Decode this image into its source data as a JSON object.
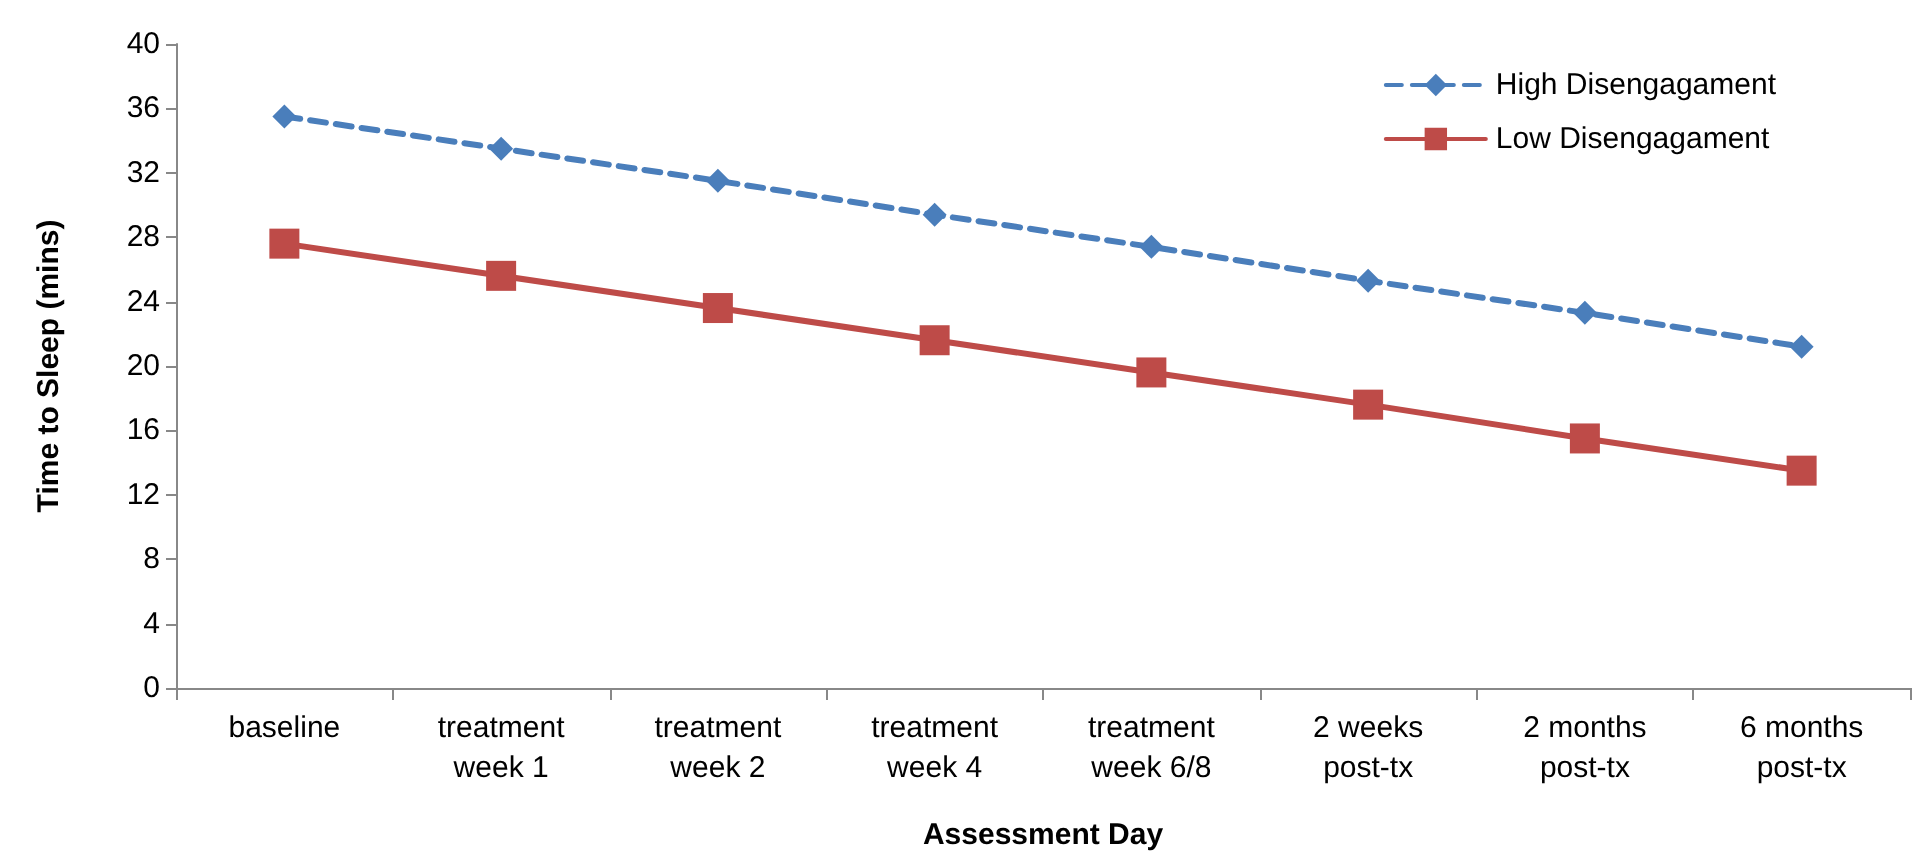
{
  "chart_data": {
    "type": "line",
    "xlabel": "Assessment Day",
    "ylabel": "Time to Sleep (mins)",
    "categories": [
      "baseline",
      "treatment\nweek 1",
      "treatment\nweek 2",
      "treatment\nweek 4",
      "treatment\nweek 6/8",
      "2 weeks\npost-tx",
      "2 months\npost-tx",
      "6 months\npost-tx"
    ],
    "series": [
      {
        "name": "High Disengagament",
        "color": "#4a7ebb",
        "marker": "diamond",
        "line_style": "dashed",
        "values": [
          35.5,
          33.5,
          31.5,
          29.4,
          27.4,
          25.3,
          23.3,
          21.2
        ]
      },
      {
        "name": "Low Disengagament",
        "color": "#be4b48",
        "marker": "square",
        "line_style": "solid",
        "values": [
          27.6,
          25.6,
          23.6,
          21.6,
          19.6,
          17.6,
          15.5,
          13.5
        ]
      }
    ],
    "ylim": [
      0,
      40
    ],
    "yticks": [
      0,
      4,
      8,
      12,
      16,
      20,
      24,
      28,
      32,
      36,
      40
    ],
    "grid": false,
    "legend": "top right"
  }
}
